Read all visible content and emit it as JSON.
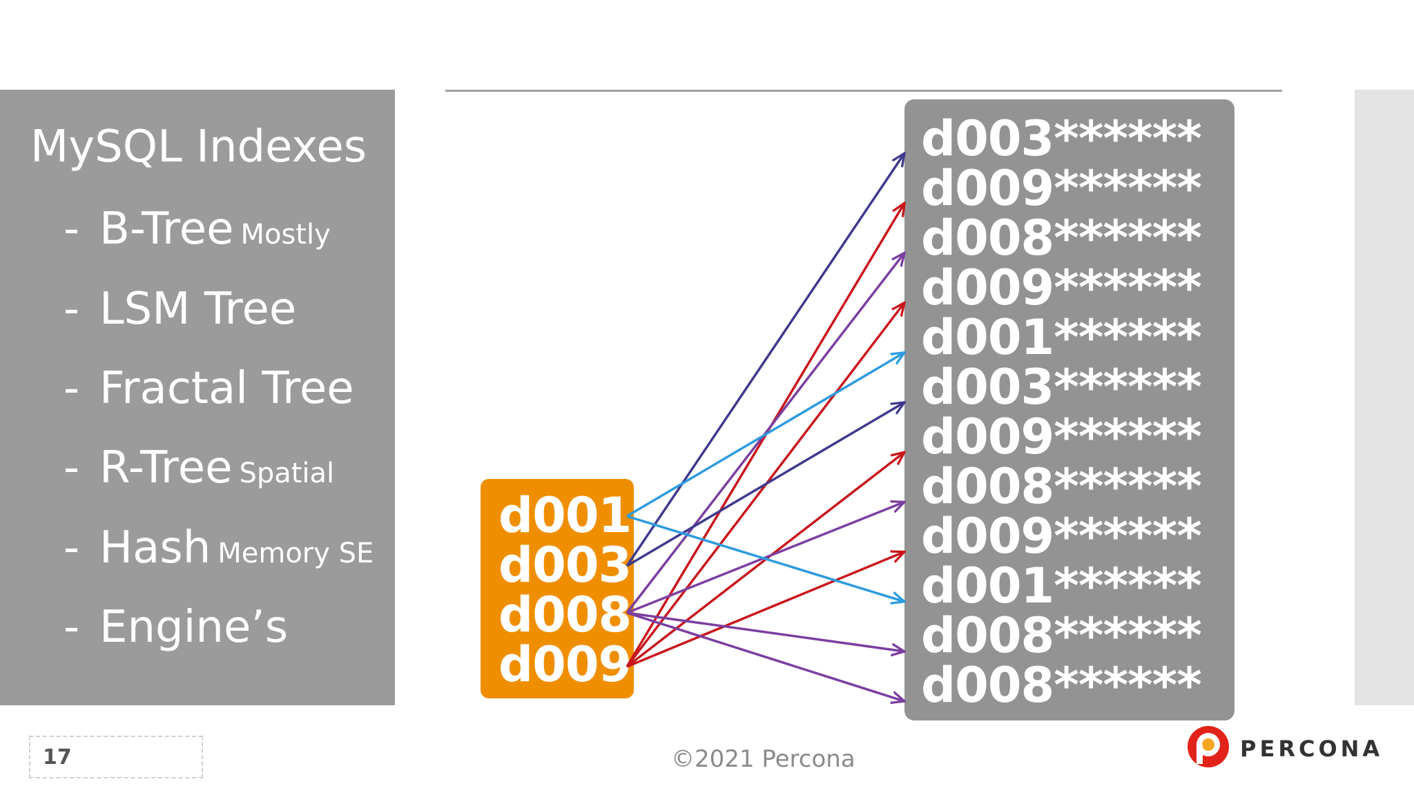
{
  "slide": {
    "title": "MySQL Indexes",
    "bullets": [
      {
        "dash": "-",
        "main": "B-Tree",
        "note": "Mostly"
      },
      {
        "dash": "-",
        "main": "LSM Tree",
        "note": ""
      },
      {
        "dash": "-",
        "main": "Fractal Tree",
        "note": ""
      },
      {
        "dash": "-",
        "main": "R-Tree",
        "note": "Spatial"
      },
      {
        "dash": "-",
        "main": "Hash",
        "note": "Memory SE"
      },
      {
        "dash": "-",
        "main": "Engine’s",
        "note": ""
      }
    ]
  },
  "diagram": {
    "index_keys": [
      "d001",
      "d003",
      "d008",
      "d009"
    ],
    "table_rows": [
      "d003******",
      "d009******",
      "d008******",
      "d009******",
      "d001******",
      "d003******",
      "d009******",
      "d008******",
      "d009******",
      "d001******",
      "d008******",
      "d008******"
    ],
    "key_colors": {
      "d001": "#2e9be0",
      "d003": "#3f3a8c",
      "d008": "#7b3fa0",
      "d009": "#c8161d"
    },
    "box_colors": {
      "keys": "#ef8f00",
      "rows": "#939393"
    }
  },
  "footer": {
    "page_number": "17",
    "copyright": "©2021 Percona",
    "brand": "PERCONA"
  }
}
